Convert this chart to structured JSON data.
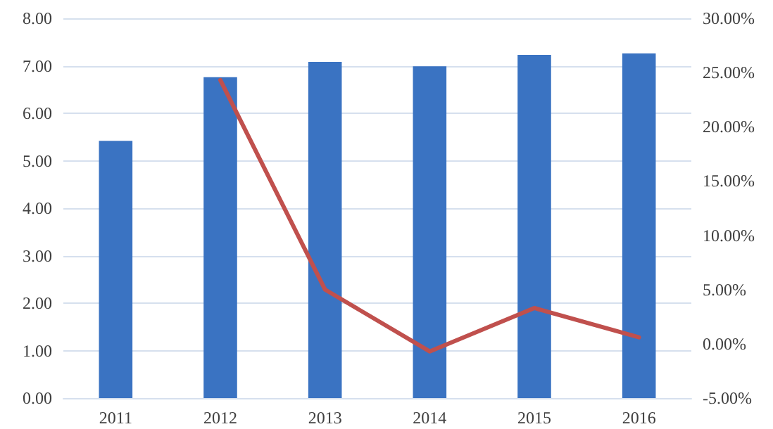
{
  "chart_data": {
    "type": "bar",
    "categories": [
      "2011",
      "2012",
      "2013",
      "2014",
      "2015",
      "2016"
    ],
    "series": [
      {
        "color": "#3a73c2",
        "values": [
          5.42,
          6.76,
          7.08,
          6.99,
          7.23,
          7.26
        ]
      },
      {
        "type": "line",
        "axis": "y2",
        "color": "#c0504d",
        "values": [
          null,
          24.3,
          5.0,
          -0.7,
          3.3,
          0.6
        ]
      }
    ],
    "ylim": [
      0,
      8
    ],
    "yticks": [
      {
        "value": 0,
        "label": "0.00"
      },
      {
        "value": 1,
        "label": "1.00"
      },
      {
        "value": 2,
        "label": "2.00"
      },
      {
        "value": 3,
        "label": "3.00"
      },
      {
        "value": 4,
        "label": "4.00"
      },
      {
        "value": 5,
        "label": "5.00"
      },
      {
        "value": 6,
        "label": "6.00"
      },
      {
        "value": 7,
        "label": "7.00"
      },
      {
        "value": 8,
        "label": "8.00"
      }
    ],
    "y2lim": [
      -5,
      30
    ],
    "y2ticks": [
      {
        "value": -5,
        "label": "-5.00%"
      },
      {
        "value": 0,
        "label": "0.00%"
      },
      {
        "value": 5,
        "label": "5.00%"
      },
      {
        "value": 10,
        "label": "10.00%"
      },
      {
        "value": 15,
        "label": "15.00%"
      },
      {
        "value": 20,
        "label": "20.00%"
      },
      {
        "value": 25,
        "label": "25.00%"
      },
      {
        "value": 30,
        "label": "30.00%"
      }
    ],
    "grid": "y",
    "marker": "none",
    "line_style": "solid"
  }
}
